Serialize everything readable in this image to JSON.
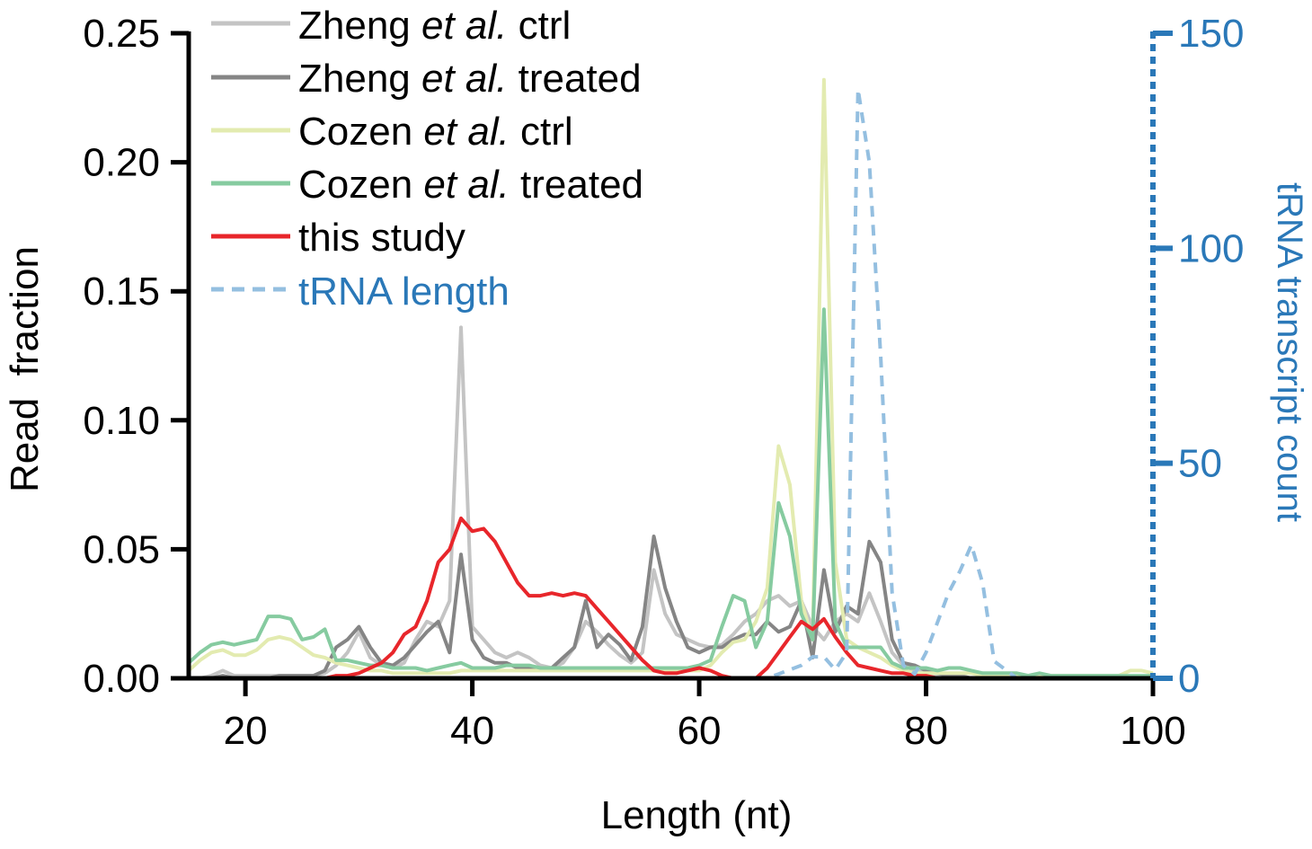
{
  "chart_data": {
    "type": "line",
    "xlabel": "Length (nt)",
    "ylabel": "Read  fraction",
    "y2label": "tRNA transcript count",
    "xlim": [
      15,
      100
    ],
    "ylim": [
      0,
      0.25
    ],
    "y2lim": [
      0,
      150
    ],
    "x_ticks": [
      20,
      40,
      60,
      80,
      100
    ],
    "y_ticks": [
      0.0,
      0.05,
      0.1,
      0.15,
      0.2,
      0.25
    ],
    "y_tick_labels": [
      "0.00",
      "0.05",
      "0.10",
      "0.15",
      "0.20",
      "0.25"
    ],
    "y2_ticks": [
      0,
      50,
      100,
      150
    ],
    "grid": false,
    "legend_placement": "top-left",
    "colors": {
      "zheng_ctrl": "#c4c4c4",
      "zheng_treated": "#858585",
      "cozen_ctrl": "#e3ebb0",
      "cozen_treated": "#86cba0",
      "this_study": "#e8262b",
      "trna": "#94bfe0",
      "right_axis": "#2a78b8"
    },
    "series": [
      {
        "name": "Zheng et al. ctrl",
        "key": "zheng_ctrl",
        "style": "solid",
        "axis": "left",
        "x": [
          15,
          16,
          17,
          18,
          19,
          20,
          21,
          22,
          23,
          24,
          25,
          26,
          27,
          28,
          29,
          30,
          31,
          32,
          33,
          34,
          35,
          36,
          37,
          38,
          39,
          40,
          41,
          42,
          43,
          44,
          45,
          46,
          47,
          48,
          49,
          50,
          51,
          52,
          53,
          54,
          55,
          56,
          57,
          58,
          59,
          60,
          61,
          62,
          63,
          64,
          65,
          66,
          67,
          68,
          69,
          70,
          71,
          72,
          73,
          74,
          75,
          76,
          77,
          78,
          79,
          80,
          81,
          82,
          83,
          84,
          85,
          86,
          87,
          88,
          89,
          90,
          91,
          92,
          93,
          94,
          95,
          96,
          97,
          98,
          99,
          100
        ],
        "y": [
          0,
          0,
          0.001,
          0.003,
          0.001,
          0.001,
          0.001,
          0.001,
          0.001,
          0.001,
          0.001,
          0.001,
          0.002,
          0.005,
          0.01,
          0.018,
          0.008,
          0.005,
          0.004,
          0.006,
          0.015,
          0.022,
          0.02,
          0.03,
          0.136,
          0.02,
          0.015,
          0.01,
          0.008,
          0.01,
          0.008,
          0.005,
          0.004,
          0.006,
          0.012,
          0.022,
          0.018,
          0.013,
          0.009,
          0.006,
          0.01,
          0.042,
          0.025,
          0.017,
          0.015,
          0.013,
          0.012,
          0.013,
          0.017,
          0.022,
          0.025,
          0.03,
          0.032,
          0.028,
          0.03,
          0.02,
          0.015,
          0.022,
          0.025,
          0.022,
          0.033,
          0.022,
          0.01,
          0.005,
          0.003,
          0.002,
          0.001,
          0.001,
          0.001,
          0,
          0,
          0,
          0,
          0,
          0,
          0,
          0,
          0,
          0,
          0,
          0,
          0,
          0,
          0,
          0,
          0
        ]
      },
      {
        "name": "Zheng et al. treated",
        "key": "zheng_treated",
        "style": "solid",
        "axis": "left",
        "x": [
          15,
          16,
          17,
          18,
          19,
          20,
          21,
          22,
          23,
          24,
          25,
          26,
          27,
          28,
          29,
          30,
          31,
          32,
          33,
          34,
          35,
          36,
          37,
          38,
          39,
          40,
          41,
          42,
          43,
          44,
          45,
          46,
          47,
          48,
          49,
          50,
          51,
          52,
          53,
          54,
          55,
          56,
          57,
          58,
          59,
          60,
          61,
          62,
          63,
          64,
          65,
          66,
          67,
          68,
          69,
          70,
          71,
          72,
          73,
          74,
          75,
          76,
          77,
          78,
          79,
          80,
          81,
          82,
          83,
          84,
          85,
          86,
          87,
          88,
          89,
          90,
          91,
          92,
          93,
          94,
          95,
          96,
          97,
          98,
          99,
          100
        ],
        "y": [
          0,
          0,
          0,
          0.001,
          0,
          0,
          0,
          0,
          0.001,
          0.001,
          0.001,
          0.001,
          0.003,
          0.012,
          0.015,
          0.02,
          0.012,
          0.006,
          0.005,
          0.008,
          0.013,
          0.018,
          0.022,
          0.01,
          0.048,
          0.015,
          0.008,
          0.006,
          0.006,
          0.004,
          0.004,
          0.004,
          0.004,
          0.008,
          0.012,
          0.03,
          0.012,
          0.017,
          0.013,
          0.007,
          0.02,
          0.055,
          0.035,
          0.022,
          0.012,
          0.01,
          0.012,
          0.012,
          0.015,
          0.017,
          0.017,
          0.022,
          0.018,
          0.02,
          0.03,
          0.008,
          0.042,
          0.018,
          0.028,
          0.025,
          0.053,
          0.045,
          0.015,
          0.006,
          0.005,
          0.003,
          0.002,
          0.001,
          0.001,
          0,
          0,
          0,
          0,
          0,
          0,
          0,
          0,
          0,
          0,
          0,
          0,
          0,
          0,
          0,
          0,
          0
        ]
      },
      {
        "name": "Cozen et al. ctrl",
        "key": "cozen_ctrl",
        "style": "solid",
        "axis": "left",
        "x": [
          15,
          16,
          17,
          18,
          19,
          20,
          21,
          22,
          23,
          24,
          25,
          26,
          27,
          28,
          29,
          30,
          31,
          32,
          33,
          34,
          35,
          36,
          37,
          38,
          39,
          40,
          41,
          42,
          43,
          44,
          45,
          46,
          47,
          48,
          49,
          50,
          51,
          52,
          53,
          54,
          55,
          56,
          57,
          58,
          59,
          60,
          61,
          62,
          63,
          64,
          65,
          66,
          67,
          68,
          69,
          70,
          71,
          72,
          73,
          74,
          75,
          76,
          77,
          78,
          79,
          80,
          81,
          82,
          83,
          84,
          85,
          86,
          87,
          88,
          89,
          90,
          91,
          92,
          93,
          94,
          95,
          96,
          97,
          98,
          99,
          100
        ],
        "y": [
          0.003,
          0.007,
          0.01,
          0.011,
          0.009,
          0.009,
          0.011,
          0.015,
          0.016,
          0.015,
          0.012,
          0.009,
          0.008,
          0.006,
          0.005,
          0.004,
          0.003,
          0.003,
          0.002,
          0.002,
          0.002,
          0.002,
          0.002,
          0.002,
          0.003,
          0.003,
          0.003,
          0.003,
          0.003,
          0.003,
          0.003,
          0.003,
          0.003,
          0.003,
          0.003,
          0.003,
          0.003,
          0.003,
          0.003,
          0.003,
          0.003,
          0.003,
          0.003,
          0.003,
          0.003,
          0.003,
          0.005,
          0.01,
          0.014,
          0.015,
          0.022,
          0.035,
          0.09,
          0.075,
          0.03,
          0.015,
          0.232,
          0.045,
          0.015,
          0.012,
          0.01,
          0.008,
          0.005,
          0.003,
          0.002,
          0.002,
          0.002,
          0.002,
          0.002,
          0.002,
          0.001,
          0.001,
          0.001,
          0.001,
          0.001,
          0.001,
          0.001,
          0.001,
          0.001,
          0.001,
          0.001,
          0.001,
          0.001,
          0.003,
          0.003,
          0.002
        ]
      },
      {
        "name": "Cozen et al. treated",
        "key": "cozen_treated",
        "style": "solid",
        "axis": "left",
        "x": [
          15,
          16,
          17,
          18,
          19,
          20,
          21,
          22,
          23,
          24,
          25,
          26,
          27,
          28,
          29,
          30,
          31,
          32,
          33,
          34,
          35,
          36,
          37,
          38,
          39,
          40,
          41,
          42,
          43,
          44,
          45,
          46,
          47,
          48,
          49,
          50,
          51,
          52,
          53,
          54,
          55,
          56,
          57,
          58,
          59,
          60,
          61,
          62,
          63,
          64,
          65,
          66,
          67,
          68,
          69,
          70,
          71,
          72,
          73,
          74,
          75,
          76,
          77,
          78,
          79,
          80,
          81,
          82,
          83,
          84,
          85,
          86,
          87,
          88,
          89,
          90,
          91,
          92,
          93,
          94,
          95,
          96,
          97,
          98,
          99,
          100
        ],
        "y": [
          0.006,
          0.01,
          0.013,
          0.014,
          0.013,
          0.014,
          0.015,
          0.024,
          0.024,
          0.023,
          0.015,
          0.016,
          0.019,
          0.007,
          0.007,
          0.006,
          0.005,
          0.005,
          0.004,
          0.004,
          0.004,
          0.003,
          0.004,
          0.005,
          0.006,
          0.004,
          0.004,
          0.004,
          0.005,
          0.005,
          0.005,
          0.004,
          0.004,
          0.004,
          0.004,
          0.004,
          0.004,
          0.004,
          0.004,
          0.004,
          0.004,
          0.004,
          0.004,
          0.004,
          0.004,
          0.005,
          0.007,
          0.02,
          0.032,
          0.03,
          0.012,
          0.022,
          0.068,
          0.055,
          0.025,
          0.015,
          0.143,
          0.022,
          0.012,
          0.012,
          0.012,
          0.012,
          0.006,
          0.004,
          0.004,
          0.004,
          0.003,
          0.004,
          0.004,
          0.003,
          0.002,
          0.002,
          0.002,
          0.002,
          0.001,
          0.002,
          0.001,
          0.001,
          0.001,
          0.001,
          0.001,
          0.001,
          0.001,
          0.001,
          0.001,
          0.001
        ]
      },
      {
        "name": "this study",
        "key": "this_study",
        "style": "solid",
        "axis": "left",
        "x": [
          15,
          16,
          17,
          18,
          19,
          20,
          21,
          22,
          23,
          24,
          25,
          26,
          27,
          28,
          29,
          30,
          31,
          32,
          33,
          34,
          35,
          36,
          37,
          38,
          39,
          40,
          41,
          42,
          43,
          44,
          45,
          46,
          47,
          48,
          49,
          50,
          51,
          52,
          53,
          54,
          55,
          56,
          57,
          58,
          59,
          60,
          61,
          62,
          63,
          64,
          65,
          66,
          67,
          68,
          69,
          70,
          71,
          72,
          73,
          74,
          75,
          76,
          77,
          78,
          79,
          80,
          81,
          82,
          83,
          84,
          85,
          86,
          87,
          88,
          89,
          90,
          91,
          92,
          93,
          94,
          95,
          96,
          97,
          98,
          99,
          100
        ],
        "y": [
          0,
          0,
          0,
          0,
          0,
          0,
          0,
          0,
          0,
          0,
          0,
          0,
          0,
          0.001,
          0.001,
          0.002,
          0.004,
          0.006,
          0.01,
          0.017,
          0.02,
          0.03,
          0.045,
          0.05,
          0.062,
          0.057,
          0.058,
          0.053,
          0.045,
          0.037,
          0.032,
          0.032,
          0.033,
          0.032,
          0.033,
          0.032,
          0.027,
          0.022,
          0.017,
          0.012,
          0.007,
          0.003,
          0.002,
          0.002,
          0.003,
          0.004,
          0.003,
          0.001,
          0,
          0,
          0,
          0.004,
          0.01,
          0.016,
          0.022,
          0.019,
          0.023,
          0.016,
          0.01,
          0.005,
          0.004,
          0.003,
          0.002,
          0.002,
          0.001,
          0.001,
          0,
          0,
          0,
          0,
          0,
          0,
          0,
          0,
          0,
          0,
          0,
          0,
          0,
          0,
          0,
          0,
          0,
          0,
          0,
          0
        ]
      },
      {
        "name": "tRNA length",
        "key": "trna",
        "style": "dashed",
        "axis": "right",
        "x": [
          60,
          61,
          62,
          63,
          64,
          65,
          66,
          67,
          68,
          69,
          70,
          71,
          72,
          73,
          74,
          75,
          76,
          77,
          78,
          79,
          80,
          81,
          82,
          83,
          84,
          85,
          86,
          87,
          88,
          89,
          90
        ],
        "y": [
          0,
          0,
          0,
          0,
          0,
          0,
          0,
          1,
          2,
          3,
          5,
          5,
          2,
          6,
          137,
          120,
          75,
          20,
          3,
          1,
          6,
          13,
          20,
          25,
          31,
          22,
          4,
          2,
          0,
          0,
          0
        ]
      }
    ]
  }
}
